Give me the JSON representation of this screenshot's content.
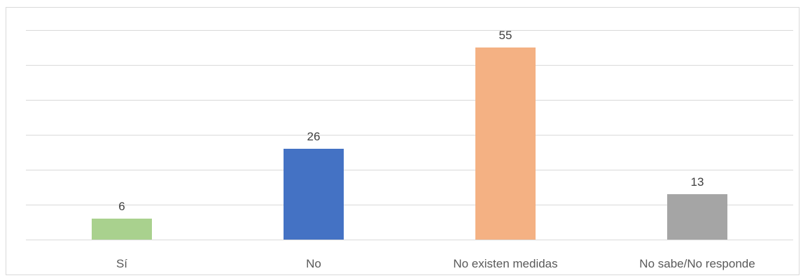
{
  "chart_data": {
    "type": "bar",
    "title": "",
    "xlabel": "",
    "ylabel": "",
    "categories": [
      "Sí",
      "No",
      "No existen medidas",
      "No sabe/No responde"
    ],
    "values": [
      6,
      26,
      55,
      13
    ],
    "colors": [
      "#a9d18e",
      "#4472c4",
      "#f4b183",
      "#a5a5a5"
    ],
    "ylim": [
      0,
      60
    ],
    "y_axis_labels_visible": false,
    "grid": true,
    "gridline_color": "#d9d9d9",
    "data_labels": true,
    "legend": "none"
  }
}
